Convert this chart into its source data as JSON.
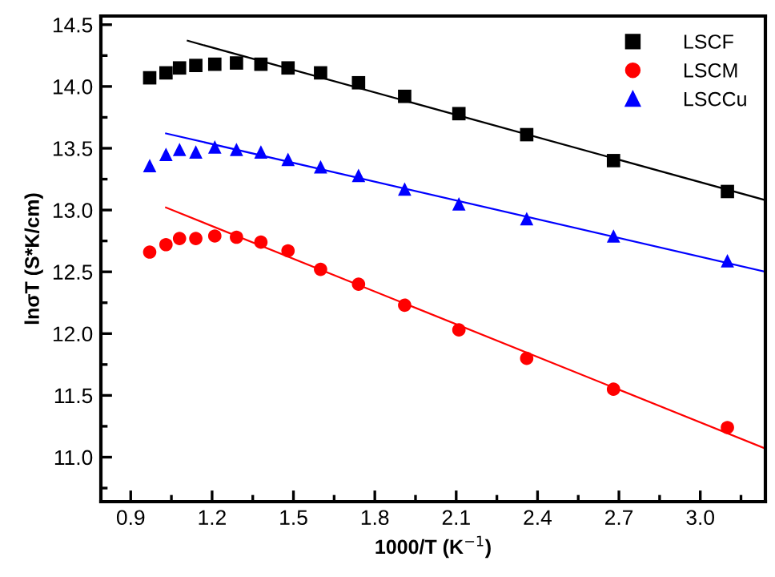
{
  "chart_data": {
    "type": "scatter",
    "xlabel": "1000/T (K$^{−1}$)",
    "ylabel": "lnσT (S*K/cm)",
    "xlim": [
      0.79,
      3.24
    ],
    "ylim": [
      10.64,
      14.57
    ],
    "xticks": [
      0.9,
      1.2,
      1.5,
      1.8,
      2.1,
      2.4,
      2.7,
      {
        "value": 3,
        "label": "3.0"
      }
    ],
    "yticks": [
      {
        "value": 11,
        "label": "11.0"
      },
      11.5,
      {
        "value": 12,
        "label": "12.0"
      },
      12.5,
      {
        "value": 13,
        "label": "13.0"
      },
      13.5,
      {
        "value": 14,
        "label": "14.0"
      },
      14.5
    ],
    "legend": "top right",
    "grid": false,
    "x": [
      0.97,
      1.03,
      1.08,
      1.14,
      1.21,
      1.29,
      1.38,
      1.48,
      1.6,
      1.74,
      1.91,
      2.11,
      2.36,
      2.68,
      3.1
    ],
    "series": [
      {
        "name": "LSCF",
        "color": "#000000",
        "marker": "square",
        "values": [
          14.07,
          14.11,
          14.15,
          14.17,
          14.18,
          14.19,
          14.18,
          14.15,
          14.11,
          14.03,
          13.92,
          13.78,
          13.61,
          13.4,
          13.15
        ]
      },
      {
        "name": "LSCM",
        "color": "#ff0000",
        "marker": "circle",
        "values": [
          12.66,
          12.72,
          12.77,
          12.77,
          12.79,
          12.78,
          12.74,
          12.67,
          12.52,
          12.4,
          12.23,
          12.03,
          11.8,
          11.55,
          11.24
        ]
      },
      {
        "name": "LSCCu",
        "color": "#0000ff",
        "marker": "triangle",
        "values": [
          13.36,
          13.45,
          13.49,
          13.47,
          13.51,
          13.49,
          13.47,
          13.41,
          13.35,
          13.28,
          13.17,
          13.05,
          12.93,
          12.79,
          12.59
        ]
      },
      {
        "type": "line",
        "color": "#000000",
        "x": [
          1.11,
          3.24
        ],
        "values": [
          14.37,
          13.08
        ]
      },
      {
        "type": "line",
        "color": "#ff0000",
        "x": [
          1.03,
          3.24
        ],
        "values": [
          13.02,
          11.07
        ]
      },
      {
        "type": "line",
        "color": "#0000ff",
        "x": [
          1.03,
          3.24
        ],
        "values": [
          13.62,
          12.5
        ]
      }
    ]
  }
}
